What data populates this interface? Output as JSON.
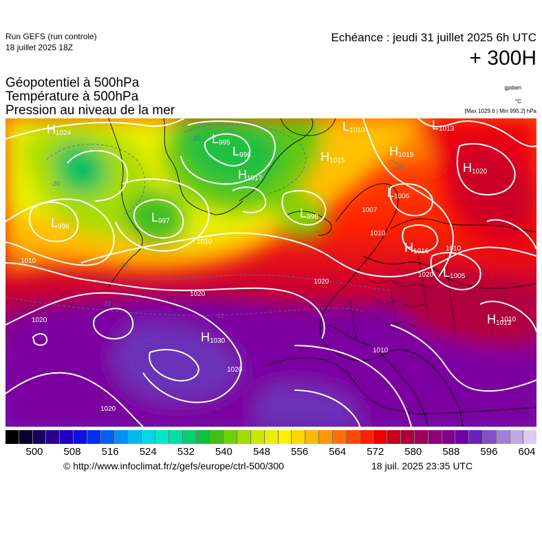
{
  "header": {
    "run_model": "Run GEFS (run controle)",
    "run_date": "18 juillet 2025 18Z",
    "echeance": "Echéance : jeudi 31 juillet 2025 6h UTC",
    "lead": "+ 300H"
  },
  "parameters": [
    "Géopotentiel à 500hPa",
    "Température à 500hPa",
    "Pression au niveau de la mer"
  ],
  "units": {
    "geopotential": "gpdam",
    "temperature": "°C",
    "maxmin": "[Max 1029.6 | Min 995.2] hPa"
  },
  "pressure_centers": [
    {
      "type": "H",
      "value": "1024"
    },
    {
      "type": "L",
      "value": "995"
    },
    {
      "type": "L",
      "value": "996"
    },
    {
      "type": "L",
      "value": "1010"
    },
    {
      "type": "H",
      "value": "1015"
    },
    {
      "type": "H",
      "value": "1015"
    },
    {
      "type": "L",
      "value": "1013"
    },
    {
      "type": "H",
      "value": "1020"
    },
    {
      "type": "H",
      "value": "1017"
    },
    {
      "type": "L",
      "value": "996"
    },
    {
      "type": "L",
      "value": "997"
    },
    {
      "type": "L",
      "value": "998"
    },
    {
      "type": "L",
      "value": "1006"
    },
    {
      "type": "H",
      "value": "1016"
    },
    {
      "type": "L",
      "value": "1005"
    },
    {
      "type": "H",
      "value": "1030"
    },
    {
      "type": "H",
      "value": "1013"
    }
  ],
  "isobar_labels": [
    "1010",
    "1010",
    "1020",
    "1020",
    "1020",
    "1020",
    "1020",
    "1010",
    "1010",
    "1010",
    "1007",
    "1010",
    "1020"
  ],
  "temperature_labels": [
    "-20",
    "-20",
    "-20",
    "-20",
    "-10",
    "-10"
  ],
  "colorbar": {
    "colors": [
      "#000000",
      "#0a0030",
      "#1a0060",
      "#2a0090",
      "#2000c0",
      "#1010e0",
      "#0030f0",
      "#0060f8",
      "#0090f8",
      "#00b8f0",
      "#00d8e8",
      "#00e8c8",
      "#00e0a0",
      "#00d070",
      "#10c040",
      "#40c010",
      "#70d000",
      "#a0dc00",
      "#c8e800",
      "#e8f000",
      "#fff000",
      "#ffd800",
      "#ffb800",
      "#ff9800",
      "#ff7000",
      "#ff4800",
      "#ff2000",
      "#e80000",
      "#c8001e",
      "#b0003c",
      "#a0005a",
      "#90007a",
      "#800090",
      "#7000a8",
      "#6a20b8",
      "#8050c8",
      "#a080d8",
      "#c0a8e4",
      "#dcccee"
    ],
    "labels": [
      "500",
      "508",
      "516",
      "524",
      "532",
      "540",
      "548",
      "556",
      "564",
      "572",
      "580",
      "588",
      "596",
      "604"
    ]
  },
  "footer": {
    "credit": "© http://www.infoclimat.fr/z/gefs/europe/ctrl-500/300",
    "timestamp": "18 juil. 2025 23:35 UTC"
  }
}
